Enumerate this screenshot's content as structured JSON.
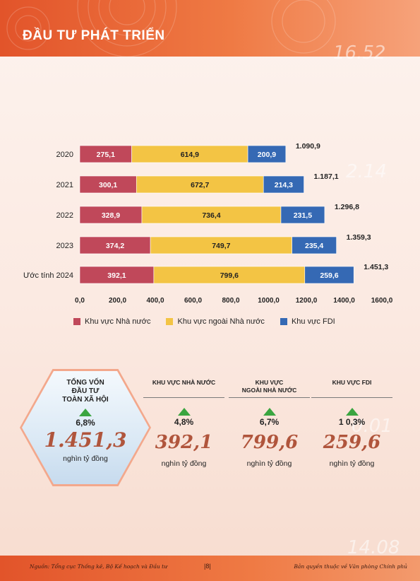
{
  "header": {
    "title": "ĐẦU TƯ PHÁT TRIỂN"
  },
  "colors": {
    "state": "#c0485a",
    "non_state": "#f3c444",
    "fdi": "#3569b4",
    "accent": "#b0553c",
    "up": "#3aa540"
  },
  "chart_data": {
    "type": "bar",
    "orientation": "horizontal",
    "stacked": true,
    "categories": [
      "2020",
      "2021",
      "2022",
      "2023",
      "Ước tính 2024"
    ],
    "series": [
      {
        "name": "Khu vực Nhà nước",
        "values": [
          275.1,
          300.1,
          328.9,
          374.2,
          392.1
        ],
        "labels": [
          "275,1",
          "300,1",
          "328,9",
          "374,2",
          "392,1"
        ]
      },
      {
        "name": "Khu vực ngoài Nhà nước",
        "values": [
          614.9,
          672.7,
          736.4,
          749.7,
          799.6
        ],
        "labels": [
          "614,9",
          "672,7",
          "736,4",
          "749,7",
          "799,6"
        ]
      },
      {
        "name": "Khu vực FDI",
        "values": [
          200.9,
          214.3,
          231.5,
          235.4,
          259.6
        ],
        "labels": [
          "200,9",
          "214,3",
          "231,5",
          "235,4",
          "259,6"
        ]
      }
    ],
    "totals": [
      "1.090,9",
      "1.187,1",
      "1.296,8",
      "1.359,3",
      "1.451,3"
    ],
    "xlim": [
      0,
      1600
    ],
    "xticks": [
      "0,0",
      "200,0",
      "400,0",
      "600,0",
      "800,0",
      "1000,0",
      "1200,0",
      "1400,0",
      "1600,0"
    ],
    "legend_position": "bottom"
  },
  "summary": {
    "title": "TỔNG VỐN\nĐẦU TƯ\nTOÀN XÃ HỘI",
    "growth": "6,8%",
    "value": "1.451,3",
    "unit": "nghìn tỷ đồng"
  },
  "sectors": [
    {
      "title": "KHU VỰC NHÀ NƯỚC",
      "growth": "4,8%",
      "value": "392,1",
      "unit": "nghìn tỷ đồng"
    },
    {
      "title": "KHU VỰC\nNGOÀI NHÀ NƯỚC",
      "growth": "6,7%",
      "value": "799,6",
      "unit": "nghìn tỷ đồng"
    },
    {
      "title": "KHU VỰC FDI",
      "growth": "1 0,3%",
      "value": "259,6",
      "unit": "nghìn tỷ đồng"
    }
  ],
  "footer": {
    "source": "Nguồn: Tổng cục Thống kê, Bộ Kế hoạch và Đầu tư",
    "page": "|8|",
    "copyright": "Bản quyền thuộc về Văn phòng Chính phủ"
  }
}
